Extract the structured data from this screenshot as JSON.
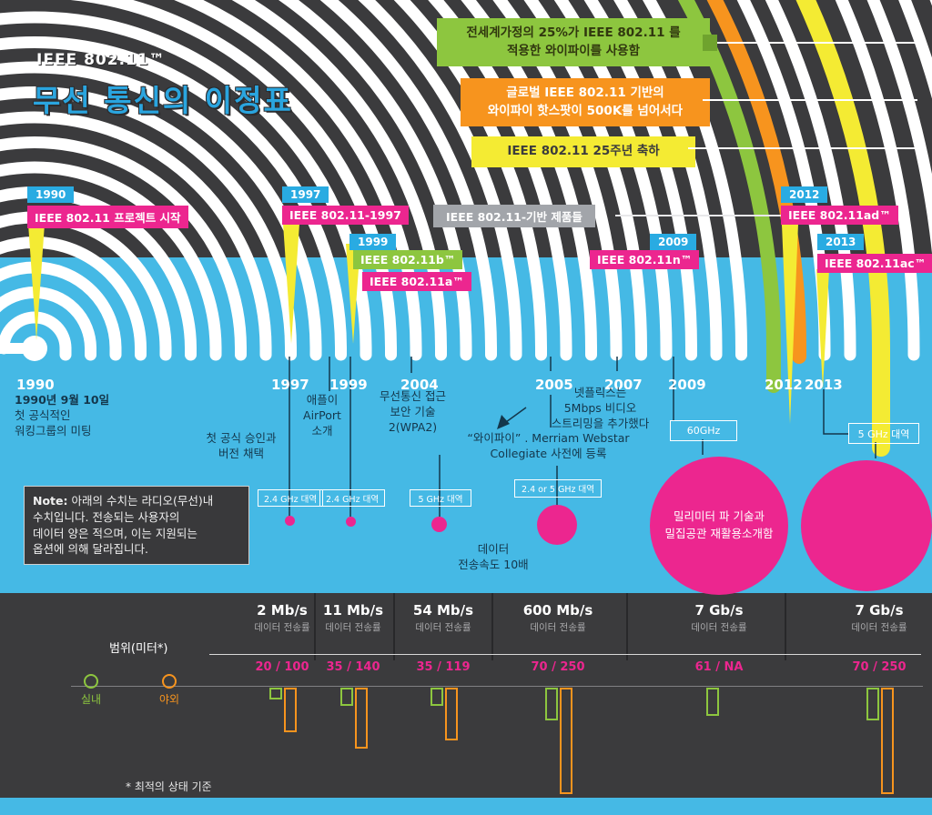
{
  "header": {
    "brand": "IEEE 802.11™",
    "title": "무선 통신의 이정표"
  },
  "callouts": {
    "green_line1": "전세계가정의 25%가 IEEE 802.11 를",
    "green_line2": "적용한 와이파이를 사용함",
    "orange_line1": "글로벌 IEEE 802.11 기반의",
    "orange_line2": "와이파이 핫스팟이 500K를 넘어서다",
    "yellow_line1": "IEEE 802.11 25주년 축하"
  },
  "milestone_tags": {
    "y1990": "1990",
    "t1990": "IEEE 802.11 프로젝트 시작",
    "y1997": "1997",
    "t1997": "IEEE 802.11-1997",
    "y1999": "1999",
    "t1999b": "IEEE 802.11b™",
    "t1999a": "IEEE 802.11a™",
    "products": "IEEE 802.11-기반 제품들",
    "y2009": "2009",
    "t2009": "IEEE 802.11n™",
    "y2012": "2012",
    "t2012": "IEEE 802.11ad™",
    "y2013": "2013",
    "t2013": "IEEE 802.11ac™"
  },
  "timeline_years": [
    "1990",
    "1997",
    "1999",
    "2004",
    "2005",
    "2007",
    "2009",
    "2012",
    "2013"
  ],
  "annotations": {
    "a1990_1": "1990년 9월 10일",
    "a1990_2": "첫 공식적인",
    "a1990_3": "워킹그룹의 미팅",
    "a1997_1": "첫 공식 승인과",
    "a1997_2": "버전 채택",
    "a1999_1": "애플이",
    "a1999_2": "AirPort",
    "a1999_3": "소개",
    "a2004_1": "무선통신 접근",
    "a2004_2": "보안 기술",
    "a2004_3": "2(WPA2)",
    "a2005_1": "“와이파이” . Merriam Webstar",
    "a2005_2": "Collegiate 사전에 등록",
    "a2007_1": "넷플릭스는",
    "a2007_2": "5Mbps 비디오",
    "a2007_3": "스트리밍을 추가했다"
  },
  "bands": {
    "b_1997": "2.4 GHz 대역",
    "b_1999": "2.4 GHz 대역",
    "b_2004": "5 GHz 대역",
    "b_2005": "2.4 or 5 GHz 대역",
    "b_2009": "60GHz",
    "b_2013": "5 GHz 대역"
  },
  "note": {
    "label": "Note:",
    "line1": "아래의 수치는 라디오(무선)내",
    "line2": "수치입니다. 전송되는 사용자의",
    "line3": "데이터 양은 적으며, 이는 지원되는",
    "line4": "옵션에 의해 달라집니다."
  },
  "speed_callout": {
    "line1": "데이터",
    "line2": "전송속도 10배"
  },
  "mmwave": {
    "line1": "밀리미터 파 기술과",
    "line2": "밀집공관 재활용소개함"
  },
  "rates": {
    "sublabel": "데이터 전송률",
    "columns": [
      {
        "rate": "2 Mb/s",
        "range": "20 / 100"
      },
      {
        "rate": "11 Mb/s",
        "range": "35 / 140"
      },
      {
        "rate": "54 Mb/s",
        "range": "35 / 119"
      },
      {
        "rate": "600 Mb/s",
        "range": "70 / 250"
      },
      {
        "rate": "7 Gb/s",
        "range": "61 / NA"
      },
      {
        "rate": "7 Gb/s",
        "range": "70 / 250"
      }
    ]
  },
  "range_axis": {
    "label": "범위(미터*)",
    "legend_indoor": "실내",
    "legend_outdoor": "야외",
    "footnote": "* 최적의 상태 기준"
  },
  "colors": {
    "pink": "#ec268f",
    "green": "#8dc63f",
    "orange": "#f7941e",
    "yellow": "#f4eb33",
    "blue": "#45b9e5",
    "dark": "#3b3b3d",
    "tag_blue": "#29abe2"
  },
  "chart_data": {
    "type": "bar",
    "title": "범위(미터*)",
    "categories": [
      "2 Mb/s",
      "11 Mb/s",
      "54 Mb/s",
      "600 Mb/s",
      "7 Gb/s",
      "7 Gb/s"
    ],
    "series": [
      {
        "name": "실내",
        "values": [
          20,
          35,
          35,
          70,
          61,
          70
        ]
      },
      {
        "name": "야외",
        "values": [
          100,
          140,
          119,
          250,
          null,
          250
        ]
      }
    ],
    "unit": "meters",
    "ylabel": "범위(미터*)",
    "legend_position": "left",
    "grid": false
  }
}
